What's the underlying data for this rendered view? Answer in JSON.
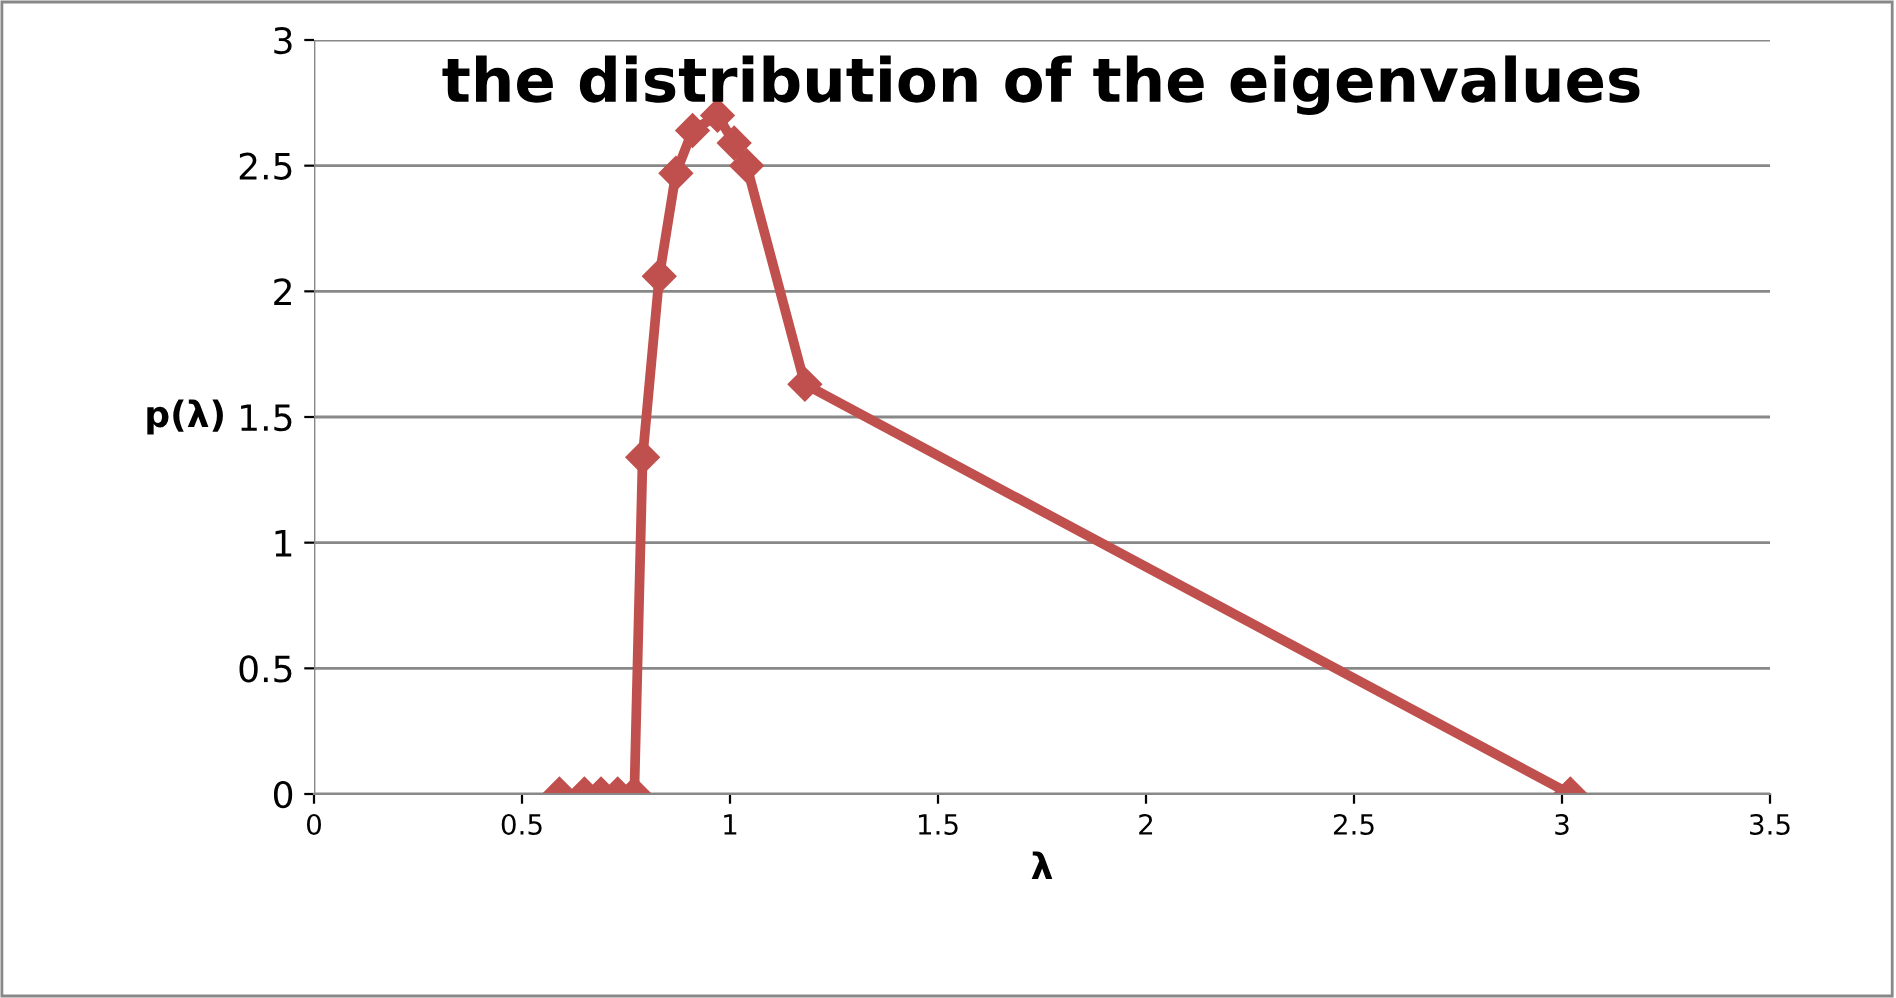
{
  "chart_data": {
    "type": "line",
    "title": "the distribution of the eigenvalues",
    "xlabel": "λ",
    "ylabel": "p(λ)",
    "series": [
      {
        "color": "#c0504d",
        "x": [
          0.59,
          0.65,
          0.69,
          0.73,
          0.77,
          0.79,
          0.83,
          0.87,
          0.91,
          0.97,
          1.01,
          1.04,
          1.18,
          3.02
        ],
        "values": [
          0,
          0,
          0,
          0,
          0,
          1.34,
          2.06,
          2.47,
          2.64,
          2.7,
          2.59,
          2.5,
          1.63,
          0
        ]
      }
    ],
    "xlim": [
      0,
      3.5
    ],
    "xticks": [
      0,
      0.5,
      1,
      1.5,
      2,
      2.5,
      3,
      3.5
    ],
    "ylim": [
      0,
      3
    ],
    "yticks": [
      0,
      0.5,
      1,
      1.5,
      2,
      2.5,
      3
    ],
    "grid": "y",
    "marker": "diamond",
    "line_style": "solid",
    "legend": false
  }
}
